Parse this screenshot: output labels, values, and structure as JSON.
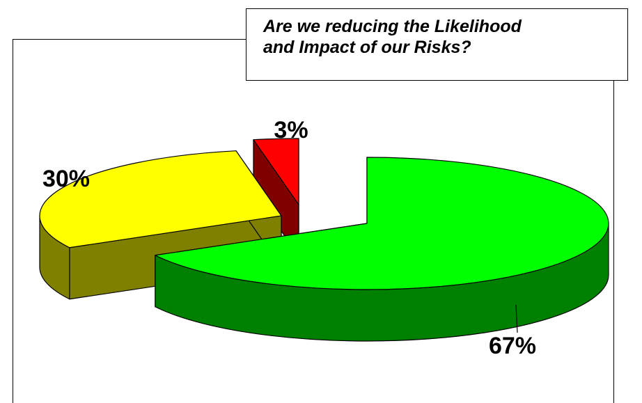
{
  "chart_data": {
    "type": "pie",
    "title": "Are we reducing the Likelihood\nand Impact of our Risks?",
    "slices": [
      {
        "label": "67%",
        "value": 67,
        "color": "#00ff00",
        "side_color": "#008000"
      },
      {
        "label": "30%",
        "value": 30,
        "color": "#ffff00",
        "side_color": "#808000"
      },
      {
        "label": "3%",
        "value": 3,
        "color": "#ff0000",
        "side_color": "#800000"
      }
    ]
  }
}
